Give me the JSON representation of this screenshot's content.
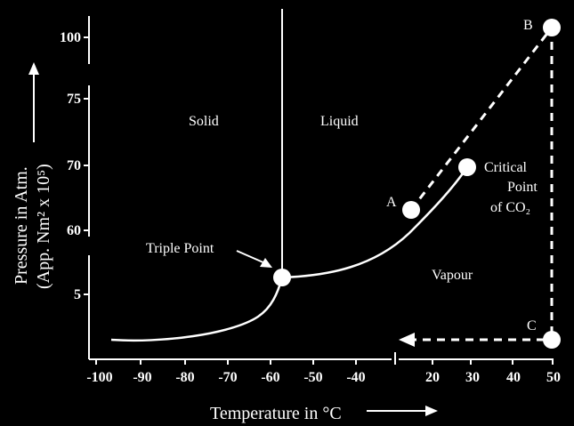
{
  "axes": {
    "x_title": "Temperature in °C",
    "y_title_line1": "Pressure in Atm.",
    "y_title_line2": "(App. Nm² x 10⁵)",
    "x_ticks": [
      "-100",
      "-90",
      "-80",
      "-70",
      "-60",
      "-50",
      "-40",
      "20",
      "30",
      "40",
      "50"
    ],
    "y_ticks": [
      "100",
      "75",
      "70",
      "60",
      "5"
    ]
  },
  "regions": {
    "solid": "Solid",
    "liquid": "Liquid",
    "vapour": "Vapour"
  },
  "points": {
    "triple": "Triple Point",
    "critical_line1": "Critical",
    "critical_line2": "Point",
    "critical_line3": "of CO₂",
    "A": "A",
    "B": "B",
    "C": "C"
  },
  "colors": {
    "background": "#000000",
    "foreground": "#ffffff"
  }
}
